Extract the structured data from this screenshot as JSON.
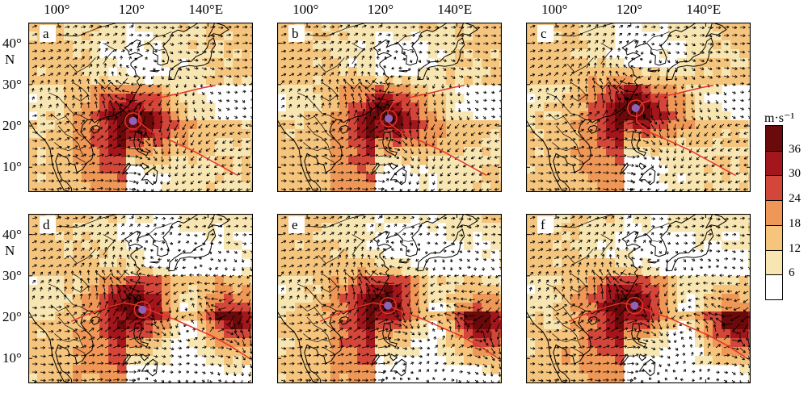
{
  "axes": {
    "top_lon_labels": [
      "100°",
      "120°",
      "140°E"
    ],
    "lat_labels": [
      "40°",
      "30°",
      "20°",
      "10°"
    ],
    "lat_N": "N"
  },
  "panels": [
    {
      "id": "a",
      "label": "a",
      "row": 0,
      "col": 0
    },
    {
      "id": "b",
      "label": "b",
      "row": 0,
      "col": 1
    },
    {
      "id": "c",
      "label": "c",
      "row": 0,
      "col": 2
    },
    {
      "id": "d",
      "label": "d",
      "row": 1,
      "col": 0
    },
    {
      "id": "e",
      "label": "e",
      "row": 1,
      "col": 1
    },
    {
      "id": "f",
      "label": "f",
      "row": 1,
      "col": 2
    }
  ],
  "colorbar": {
    "unit": "m·s⁻¹",
    "ticks": [
      "36",
      "30",
      "24",
      "18",
      "12",
      "6"
    ],
    "colors": [
      "#6b0a0a",
      "#a3161b",
      "#d2473a",
      "#ee9756",
      "#f5c47d",
      "#f8e6b2",
      "#ffffff"
    ]
  },
  "map": {
    "lon_range": [
      92,
      152
    ],
    "lat_range": [
      4,
      45
    ],
    "track_color": "#e6322a",
    "center_color": "#8e62b6",
    "arrow_color": "#000000",
    "coast_color": "#000000"
  }
}
